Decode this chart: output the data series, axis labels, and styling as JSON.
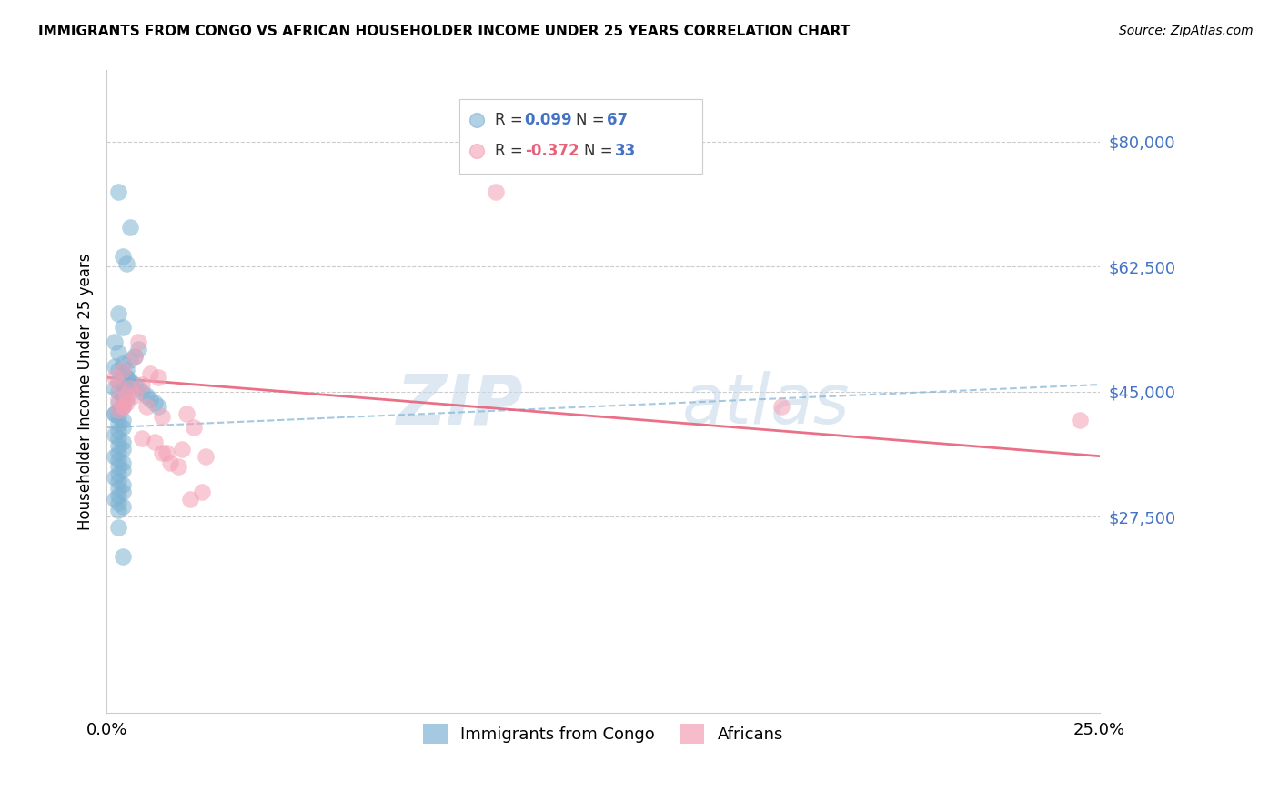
{
  "title": "IMMIGRANTS FROM CONGO VS AFRICAN HOUSEHOLDER INCOME UNDER 25 YEARS CORRELATION CHART",
  "source": "Source: ZipAtlas.com",
  "ylabel": "Householder Income Under 25 years",
  "xlim": [
    0.0,
    0.25
  ],
  "ylim": [
    0,
    90000
  ],
  "yticks": [
    27500,
    45000,
    62500,
    80000
  ],
  "ytick_labels": [
    "$27,500",
    "$45,000",
    "$62,500",
    "$80,000"
  ],
  "legend_label1": "Immigrants from Congo",
  "legend_label2": "Africans",
  "blue_color": "#7fb3d3",
  "pink_color": "#f4a0b5",
  "blue_line_color": "#7fb3d3",
  "pink_line_color": "#e8607a",
  "R_blue": 0.099,
  "N_blue": 67,
  "R_pink": -0.372,
  "N_pink": 33,
  "blue_dots_x": [
    0.003,
    0.006,
    0.004,
    0.005,
    0.003,
    0.004,
    0.002,
    0.003,
    0.004,
    0.002,
    0.003,
    0.004,
    0.005,
    0.003,
    0.004,
    0.002,
    0.003,
    0.004,
    0.005,
    0.003,
    0.004,
    0.003,
    0.002,
    0.003,
    0.004,
    0.003,
    0.004,
    0.003,
    0.002,
    0.003,
    0.004,
    0.003,
    0.004,
    0.003,
    0.002,
    0.003,
    0.004,
    0.003,
    0.004,
    0.003,
    0.002,
    0.003,
    0.004,
    0.003,
    0.004,
    0.003,
    0.002,
    0.003,
    0.004,
    0.003,
    0.005,
    0.006,
    0.007,
    0.008,
    0.009,
    0.01,
    0.011,
    0.012,
    0.013,
    0.002,
    0.003,
    0.004,
    0.005,
    0.006,
    0.007,
    0.008,
    0.004
  ],
  "blue_dots_y": [
    73000,
    68000,
    64000,
    63000,
    56000,
    54000,
    52000,
    50500,
    49000,
    48500,
    48000,
    47500,
    47000,
    46500,
    46000,
    45500,
    45000,
    44500,
    44000,
    43500,
    43000,
    42500,
    42000,
    41500,
    41000,
    40500,
    40000,
    39500,
    39000,
    38500,
    38000,
    37500,
    37000,
    36500,
    36000,
    35500,
    35000,
    34500,
    34000,
    33500,
    33000,
    32500,
    32000,
    31500,
    31000,
    30500,
    30000,
    29500,
    29000,
    28500,
    47000,
    46500,
    46000,
    45500,
    45000,
    44500,
    44000,
    43500,
    43000,
    42000,
    26000,
    22000,
    48000,
    49500,
    50000,
    51000,
    44500
  ],
  "pink_dots_x": [
    0.002,
    0.003,
    0.003,
    0.004,
    0.004,
    0.005,
    0.005,
    0.006,
    0.007,
    0.008,
    0.009,
    0.01,
    0.011,
    0.013,
    0.014,
    0.016,
    0.018,
    0.02,
    0.022,
    0.024,
    0.025,
    0.015,
    0.012,
    0.007,
    0.004,
    0.003,
    0.009,
    0.014,
    0.019,
    0.021,
    0.098,
    0.17,
    0.245
  ],
  "pink_dots_y": [
    47000,
    44000,
    46000,
    48000,
    43000,
    43500,
    44500,
    45500,
    50000,
    52000,
    46000,
    43000,
    47500,
    47000,
    41500,
    35000,
    34500,
    42000,
    40000,
    31000,
    36000,
    36500,
    38000,
    44500,
    43000,
    42500,
    38500,
    36500,
    37000,
    30000,
    73000,
    43000,
    41000
  ],
  "blue_trend_x": [
    0.0,
    0.25
  ],
  "blue_trend_y": [
    40000,
    46000
  ],
  "pink_trend_x": [
    0.0,
    0.25
  ],
  "pink_trend_y": [
    47000,
    36000
  ]
}
